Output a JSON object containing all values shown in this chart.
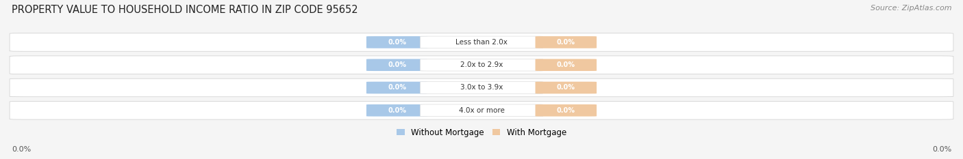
{
  "title": "PROPERTY VALUE TO HOUSEHOLD INCOME RATIO IN ZIP CODE 95652",
  "source_text": "Source: ZipAtlas.com",
  "categories": [
    "Less than 2.0x",
    "2.0x to 2.9x",
    "3.0x to 3.9x",
    "4.0x or more"
  ],
  "without_mortgage": [
    0.0,
    0.0,
    0.0,
    0.0
  ],
  "with_mortgage": [
    0.0,
    0.0,
    0.0,
    0.0
  ],
  "bar_color_without": "#a8c8e8",
  "bar_color_with": "#f0c8a0",
  "background_color": "#f5f5f5",
  "row_bg_color": "#e8e8e8",
  "row_bg_color2": "#f0f0f0",
  "title_fontsize": 10.5,
  "source_fontsize": 8,
  "legend_without": "Without Mortgage",
  "legend_with": "With Mortgage",
  "axis_label_left": "0.0%",
  "axis_label_right": "0.0%"
}
